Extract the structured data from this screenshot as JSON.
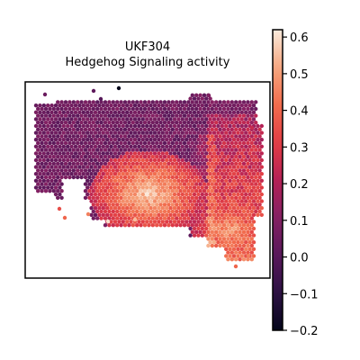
{
  "chart_data": {
    "type": "scatter",
    "subtype": "spatial-hexbin",
    "title": "UKF304",
    "subtitle": "Hedgehog Signaling activity",
    "xlabel": "",
    "ylabel": "",
    "grid": false,
    "colormap": "rocket",
    "colorbar": {
      "vmin": -0.2,
      "vmax": 0.62,
      "ticks": [
        0.6,
        0.5,
        0.4,
        0.3,
        0.2,
        0.1,
        0.0,
        -0.1,
        -0.2
      ],
      "tick_labels": [
        "0.6",
        "0.5",
        "0.4",
        "0.3",
        "0.2",
        "0.1",
        "0.0",
        "−0.1",
        "−0.2"
      ]
    },
    "regions": [
      {
        "name": "upper band",
        "value_range": [
          0.0,
          0.15
        ]
      },
      {
        "name": "right column",
        "value_range": [
          0.2,
          0.35
        ]
      },
      {
        "name": "center lobe",
        "value_range": [
          0.4,
          0.6
        ]
      },
      {
        "name": "lower right lobe",
        "value_range": [
          0.35,
          0.55
        ]
      }
    ]
  }
}
